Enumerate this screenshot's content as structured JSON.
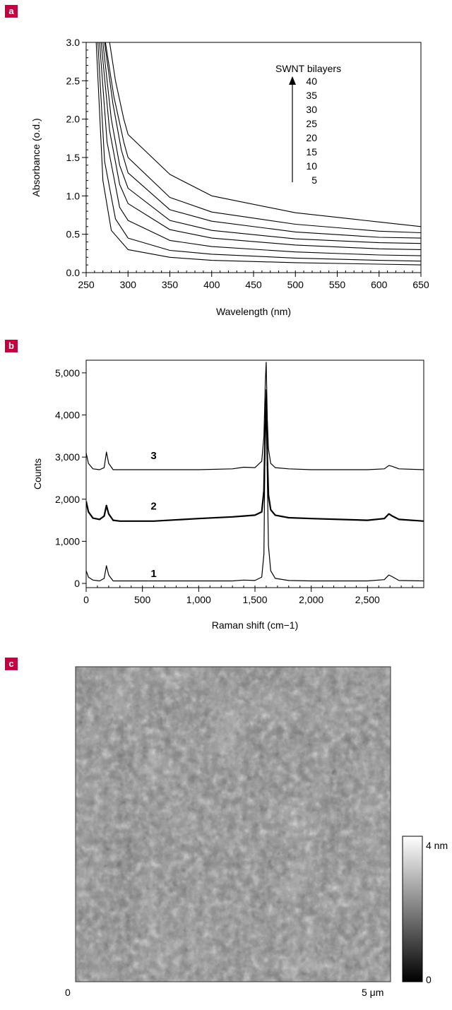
{
  "panels": [
    {
      "tag": "a"
    },
    {
      "tag": "b"
    },
    {
      "tag": "c"
    }
  ],
  "chart_data": [
    {
      "type": "line",
      "xlabel": "Wavelength (nm)",
      "ylabel": "Absorbance (o.d.)",
      "xlim": [
        250,
        650
      ],
      "ylim": [
        0.0,
        3.0
      ],
      "xticks": [
        250,
        300,
        350,
        400,
        450,
        500,
        550,
        600,
        650
      ],
      "xtick_labels": [
        "250",
        "300",
        "350",
        "400",
        "450",
        "500",
        "550",
        "600",
        "650"
      ],
      "yticks": [
        0.0,
        0.5,
        1.0,
        1.5,
        2.0,
        2.5,
        3.0
      ],
      "ytick_labels": [
        "0.0",
        "0.5",
        "1.0",
        "1.5",
        "2.0",
        "2.5",
        "3.0"
      ],
      "annotation_title": "SWNT bilayers",
      "annotation_labels": [
        "40",
        "35",
        "30",
        "25",
        "20",
        "15",
        "10",
        "5"
      ],
      "series": [
        {
          "name": "5",
          "x": [
            262,
            270,
            280,
            300,
            350,
            400,
            500,
            600,
            650
          ],
          "y": [
            3.0,
            1.2,
            0.55,
            0.3,
            0.2,
            0.16,
            0.13,
            0.11,
            0.1
          ]
        },
        {
          "name": "10",
          "x": [
            264,
            272,
            285,
            300,
            350,
            400,
            500,
            600,
            650
          ],
          "y": [
            3.0,
            1.45,
            0.7,
            0.45,
            0.29,
            0.24,
            0.19,
            0.16,
            0.15
          ]
        },
        {
          "name": "15",
          "x": [
            266,
            275,
            290,
            300,
            350,
            400,
            500,
            600,
            650
          ],
          "y": [
            3.0,
            1.7,
            0.85,
            0.68,
            0.42,
            0.34,
            0.27,
            0.23,
            0.22
          ]
        },
        {
          "name": "20",
          "x": [
            268,
            278,
            290,
            300,
            350,
            400,
            500,
            600,
            650
          ],
          "y": [
            3.0,
            1.85,
            1.15,
            0.9,
            0.56,
            0.45,
            0.36,
            0.31,
            0.3
          ]
        },
        {
          "name": "25",
          "x": [
            270,
            280,
            290,
            300,
            350,
            400,
            500,
            600,
            650
          ],
          "y": [
            3.0,
            2.0,
            1.4,
            1.1,
            0.68,
            0.55,
            0.44,
            0.39,
            0.38
          ]
        },
        {
          "name": "30",
          "x": [
            272,
            282,
            292,
            300,
            350,
            400,
            500,
            600,
            650
          ],
          "y": [
            3.0,
            2.2,
            1.6,
            1.3,
            0.82,
            0.67,
            0.53,
            0.46,
            0.45
          ]
        },
        {
          "name": "35",
          "x": [
            273,
            283,
            295,
            300,
            350,
            400,
            500,
            600,
            650
          ],
          "y": [
            3.0,
            2.3,
            1.7,
            1.5,
            0.98,
            0.79,
            0.63,
            0.54,
            0.52
          ]
        },
        {
          "name": "40",
          "x": [
            278,
            285,
            295,
            300,
            350,
            400,
            500,
            600,
            650
          ],
          "y": [
            3.0,
            2.5,
            2.0,
            1.8,
            1.28,
            1.0,
            0.78,
            0.66,
            0.6
          ]
        }
      ]
    },
    {
      "type": "line",
      "xlabel": "Raman shift (cm−1)",
      "ylabel": "Counts",
      "xlim": [
        0,
        3000
      ],
      "ylim": [
        -100,
        5300
      ],
      "xticks": [
        0,
        500,
        1000,
        1500,
        2000,
        2500
      ],
      "xtick_labels": [
        "0",
        "500",
        "1,000",
        "1,500",
        "2,000",
        "2,500"
      ],
      "yticks": [
        0,
        1000,
        2000,
        3000,
        4000,
        5000
      ],
      "ytick_labels": [
        "0",
        "1,000",
        "2,000",
        "3,000",
        "4,000",
        "5,000"
      ],
      "series": [
        {
          "name": "1",
          "x": [
            0,
            20,
            60,
            120,
            160,
            180,
            200,
            240,
            300,
            600,
            1000,
            1300,
            1400,
            1500,
            1560,
            1580,
            1592,
            1600,
            1610,
            1620,
            1640,
            1680,
            1800,
            2000,
            2500,
            2650,
            2690,
            2720,
            2780,
            3000
          ],
          "y": [
            300,
            150,
            80,
            60,
            120,
            420,
            200,
            60,
            60,
            60,
            60,
            60,
            80,
            70,
            150,
            700,
            4000,
            4600,
            2500,
            900,
            300,
            120,
            70,
            60,
            60,
            90,
            200,
            160,
            70,
            60
          ]
        },
        {
          "name": "2",
          "x": [
            0,
            20,
            60,
            120,
            160,
            180,
            200,
            240,
            300,
            600,
            1000,
            1300,
            1400,
            1500,
            1560,
            1580,
            1592,
            1600,
            1610,
            1620,
            1640,
            1680,
            1800,
            2000,
            2500,
            2650,
            2690,
            2720,
            2780,
            3000
          ],
          "y": [
            1950,
            1700,
            1550,
            1520,
            1600,
            1850,
            1650,
            1500,
            1480,
            1480,
            1540,
            1580,
            1600,
            1620,
            1700,
            2200,
            3800,
            4400,
            3000,
            2100,
            1750,
            1620,
            1560,
            1540,
            1500,
            1540,
            1650,
            1600,
            1520,
            1480
          ]
        },
        {
          "name": "3",
          "x": [
            0,
            20,
            60,
            120,
            160,
            180,
            200,
            240,
            300,
            600,
            1000,
            1300,
            1400,
            1500,
            1560,
            1580,
            1592,
            1600,
            1610,
            1620,
            1640,
            1680,
            1800,
            2000,
            2500,
            2650,
            2690,
            2720,
            2780,
            3000
          ],
          "y": [
            3100,
            2850,
            2720,
            2700,
            2750,
            3120,
            2850,
            2700,
            2700,
            2700,
            2700,
            2720,
            2760,
            2750,
            2900,
            3500,
            4800,
            5250,
            3900,
            3200,
            2850,
            2750,
            2720,
            2700,
            2700,
            2720,
            2800,
            2780,
            2720,
            2700
          ]
        }
      ]
    }
  ],
  "afm": {
    "scale_min": "0",
    "scale_max": "5 μm",
    "colorbar_max": "4 nm",
    "colorbar_min": "0"
  }
}
